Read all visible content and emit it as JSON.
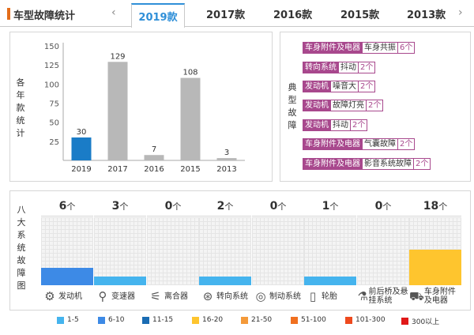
{
  "header": {
    "title": "车型故障统计",
    "prev_icon": "‹",
    "next_icon": "›",
    "tabs": [
      {
        "label": "2019款",
        "active": true
      },
      {
        "label": "2017款"
      },
      {
        "label": "2016款"
      },
      {
        "label": "2015款"
      },
      {
        "label": "2013款"
      }
    ]
  },
  "yearly": {
    "side_label": [
      "各",
      "年",
      "款",
      "统",
      "计"
    ]
  },
  "chart_data": {
    "type": "bar",
    "categories": [
      "2019",
      "2017",
      "2016",
      "2015",
      "2013"
    ],
    "values": [
      30,
      129,
      7,
      108,
      3
    ],
    "yticks": [
      25,
      50,
      75,
      100,
      125,
      150
    ],
    "ylim": [
      0,
      150
    ],
    "highlight": "2019",
    "colors": {
      "highlight": "#1a7cc7",
      "normal": "#b8b8b8"
    },
    "title": "",
    "xlabel": "",
    "ylabel": "各年款统计"
  },
  "typical": {
    "side_label": [
      "典",
      "型",
      "故",
      "障"
    ],
    "items": [
      {
        "system": "车身附件及电器",
        "fault": "车身共振",
        "count": "6个"
      },
      {
        "system": "转向系统",
        "fault": "抖动",
        "count": "2个"
      },
      {
        "system": "发动机",
        "fault": "噪音大",
        "count": "2个"
      },
      {
        "system": "发动机",
        "fault": "故障灯亮",
        "count": "2个"
      },
      {
        "system": "发动机",
        "fault": "抖动",
        "count": "2个"
      },
      {
        "system": "车身附件及电器",
        "fault": "气囊故障",
        "count": "2个"
      },
      {
        "system": "车身附件及电器",
        "fault": "影音系统故障",
        "count": "2个"
      }
    ]
  },
  "eight": {
    "side_label": [
      "八",
      "大",
      "系",
      "统",
      "故",
      "障",
      "图"
    ],
    "columns": [
      {
        "count": "6",
        "unit": "个",
        "level": 0.26,
        "color": "#3d8ae6",
        "name": "发动机",
        "icon": "⚙"
      },
      {
        "count": "3",
        "unit": "个",
        "level": 0.13,
        "color": "#45b4ee",
        "name": "变速器",
        "icon": "⚲"
      },
      {
        "count": "0",
        "unit": "个",
        "level": 0,
        "color": "#45b4ee",
        "name": "离合器",
        "icon": "⚟"
      },
      {
        "count": "2",
        "unit": "个",
        "level": 0.13,
        "color": "#45b4ee",
        "name": "转向系统",
        "icon": "⊛"
      },
      {
        "count": "0",
        "unit": "个",
        "level": 0,
        "color": "#45b4ee",
        "name": "制动系统",
        "icon": "◎"
      },
      {
        "count": "1",
        "unit": "个",
        "level": 0.13,
        "color": "#45b4ee",
        "name": "轮胎",
        "icon": "▯"
      },
      {
        "count": "0",
        "unit": "个",
        "level": 0,
        "color": "#45b4ee",
        "name": "前后桥及悬挂系统",
        "icon": "⚗"
      },
      {
        "count": "18",
        "unit": "个",
        "level": 0.52,
        "color": "#fec52e",
        "name": "车身附件及电器",
        "icon": "⛟"
      }
    ]
  },
  "legend": [
    {
      "label": "1-5",
      "color": "#45b4ee"
    },
    {
      "label": "6-10",
      "color": "#3d8ae6"
    },
    {
      "label": "11-15",
      "color": "#1a6cb3"
    },
    {
      "label": "16-20",
      "color": "#fec52e"
    },
    {
      "label": "21-50",
      "color": "#f49a3a"
    },
    {
      "label": "51-100",
      "color": "#f07020"
    },
    {
      "label": "101-300",
      "color": "#ee4a1e"
    },
    {
      "label": "300以上",
      "color": "#e01818"
    }
  ]
}
